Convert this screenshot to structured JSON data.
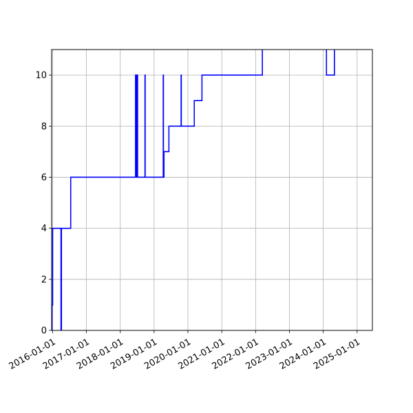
{
  "chart_data": {
    "type": "line",
    "title": "",
    "xlabel": "",
    "ylabel": "",
    "x_axis": "date",
    "xlim": [
      "2015-12-22",
      "2025-06-15"
    ],
    "ylim": [
      0,
      11
    ],
    "grid": true,
    "line_color": "#0000ff",
    "x_ticks": [
      "2016-01-01",
      "2017-01-01",
      "2018-01-01",
      "2019-01-01",
      "2020-01-01",
      "2021-01-01",
      "2022-01-01",
      "2023-01-01",
      "2024-01-01",
      "2025-01-01"
    ],
    "y_ticks": [
      0,
      2,
      4,
      6,
      8,
      10
    ],
    "series": [
      {
        "step": "post",
        "points": [
          [
            "2015-12-25",
            0
          ],
          [
            "2015-12-26",
            1
          ],
          [
            "2016-01-02",
            4
          ],
          [
            "2016-04-01",
            0
          ],
          [
            "2016-04-06",
            4
          ],
          [
            "2016-07-15",
            6
          ],
          [
            "2018-06-15",
            10
          ],
          [
            "2018-06-18",
            6
          ],
          [
            "2018-06-21",
            10
          ],
          [
            "2018-06-24",
            6
          ],
          [
            "2018-06-27",
            10
          ],
          [
            "2018-06-30",
            6
          ],
          [
            "2018-07-03",
            10
          ],
          [
            "2018-07-07",
            6
          ],
          [
            "2018-09-25",
            10
          ],
          [
            "2018-09-27",
            6
          ],
          [
            "2019-04-10",
            10
          ],
          [
            "2019-04-12",
            6
          ],
          [
            "2019-04-18",
            7
          ],
          [
            "2019-06-10",
            8
          ],
          [
            "2019-10-20",
            10
          ],
          [
            "2019-10-22",
            8
          ],
          [
            "2020-03-10",
            9
          ],
          [
            "2020-06-01",
            10
          ],
          [
            "2022-03-15",
            11.5
          ],
          [
            "2024-02-05",
            10
          ],
          [
            "2024-05-01",
            11.5
          ],
          [
            "2025-06-15",
            11.5
          ]
        ]
      }
    ]
  }
}
